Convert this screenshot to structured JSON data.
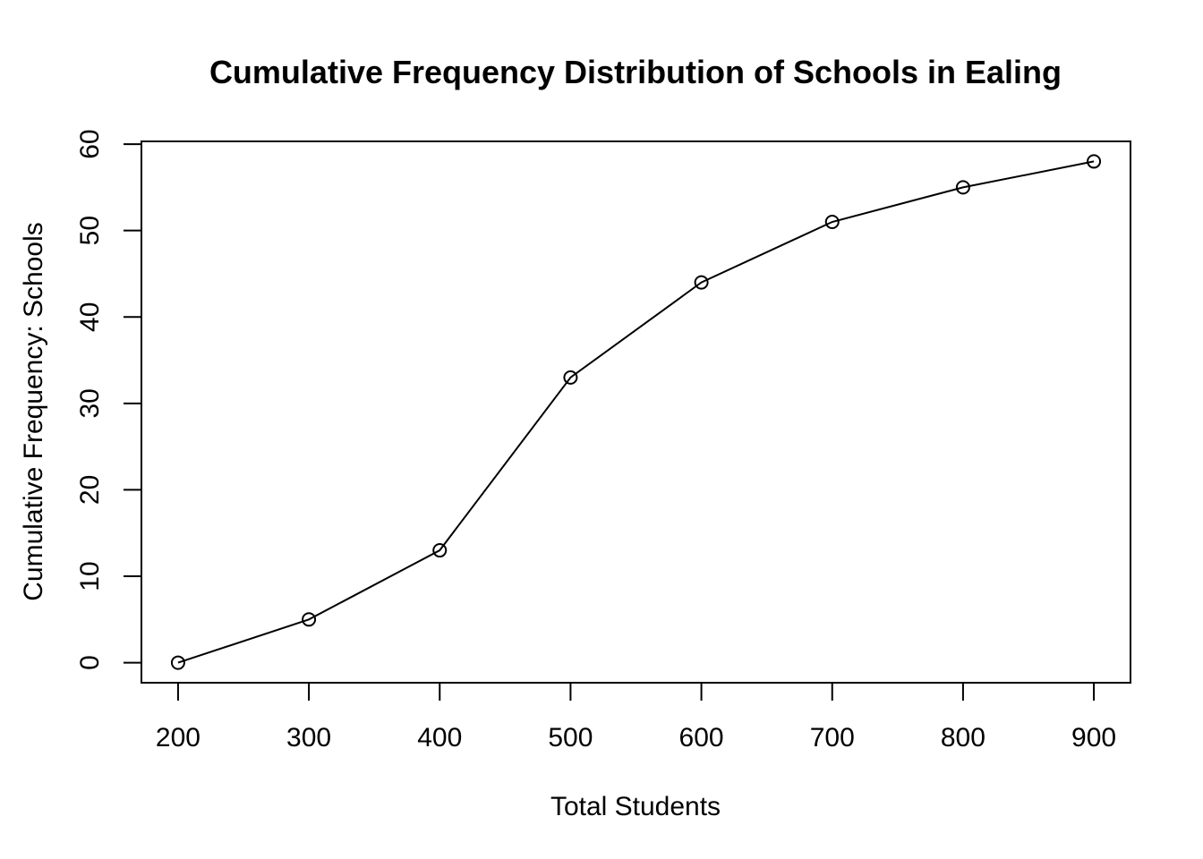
{
  "chart_data": {
    "type": "line",
    "title": "Cumulative Frequency Distribution of Schools in Ealing",
    "xlabel": "Total Students",
    "ylabel": "Cumulative Frequency: Schools",
    "x": [
      200,
      300,
      400,
      500,
      600,
      700,
      800,
      900
    ],
    "series": [
      {
        "values": [
          0,
          5,
          13,
          33,
          44,
          51,
          55,
          58
        ]
      }
    ],
    "xticks": [
      200,
      300,
      400,
      500,
      600,
      700,
      800,
      900
    ],
    "yticks": [
      0,
      10,
      20,
      30,
      40,
      50,
      60
    ],
    "xlim": [
      172,
      928
    ],
    "ylim": [
      -2.32,
      60.32
    ],
    "grid": false,
    "markers": "open-circle",
    "line_color": "#000000"
  }
}
